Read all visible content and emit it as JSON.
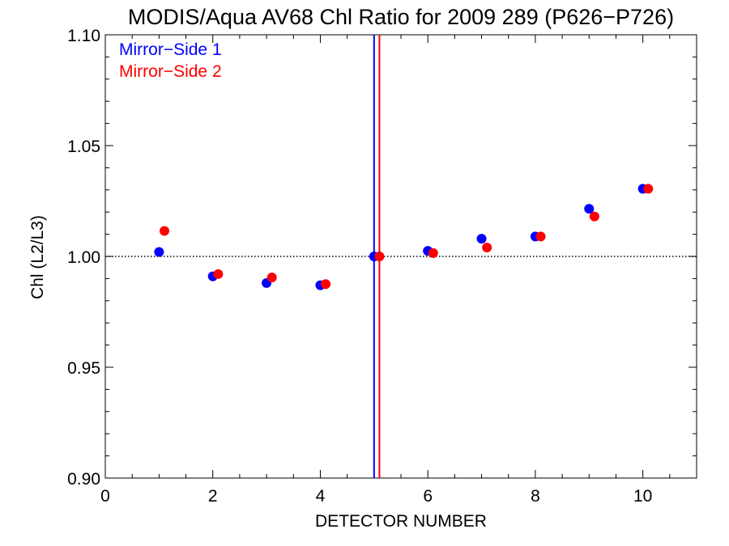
{
  "chart_data": {
    "type": "scatter",
    "title": "MODIS/Aqua AV68 Chl Ratio for 2009 289 (P626−P726)",
    "xlabel": "DETECTOR NUMBER",
    "ylabel": "Chl (L2/L3)",
    "xlim": [
      0,
      11
    ],
    "ylim": [
      0.9,
      1.1
    ],
    "xticks": [
      0,
      2,
      4,
      6,
      8,
      10
    ],
    "xtick_labels": [
      "0",
      "2",
      "4",
      "6",
      "8",
      "10"
    ],
    "yticks": [
      0.9,
      0.95,
      1.0,
      1.05,
      1.1
    ],
    "ytick_labels": [
      "0.90",
      "0.95",
      "1.00",
      "1.05",
      "1.10"
    ],
    "x_minor_step": 0.5,
    "y_minor_step": 0.01,
    "reference_line": {
      "y": 1.0,
      "style": "dotted"
    },
    "vertical_markers": [
      {
        "x": 5.0,
        "color": "#0000ff"
      },
      {
        "x": 5.1,
        "color": "#ff0000"
      }
    ],
    "legend_placement": "top-left",
    "series": [
      {
        "name": "Mirror−Side 1",
        "color": "#0000ff",
        "x": [
          1,
          2,
          3,
          4,
          5,
          6,
          7,
          8,
          9,
          10
        ],
        "y": [
          1.002,
          0.991,
          0.988,
          0.987,
          1.0,
          1.0025,
          1.008,
          1.009,
          1.0215,
          1.0305
        ]
      },
      {
        "name": "Mirror−Side 2",
        "color": "#ff0000",
        "x": [
          1.1,
          2.1,
          3.1,
          4.1,
          5.1,
          6.1,
          7.1,
          8.1,
          9.1,
          10.1
        ],
        "y": [
          1.0115,
          0.992,
          0.9905,
          0.9875,
          1.0,
          1.0015,
          1.004,
          1.009,
          1.018,
          1.0305
        ]
      }
    ]
  }
}
